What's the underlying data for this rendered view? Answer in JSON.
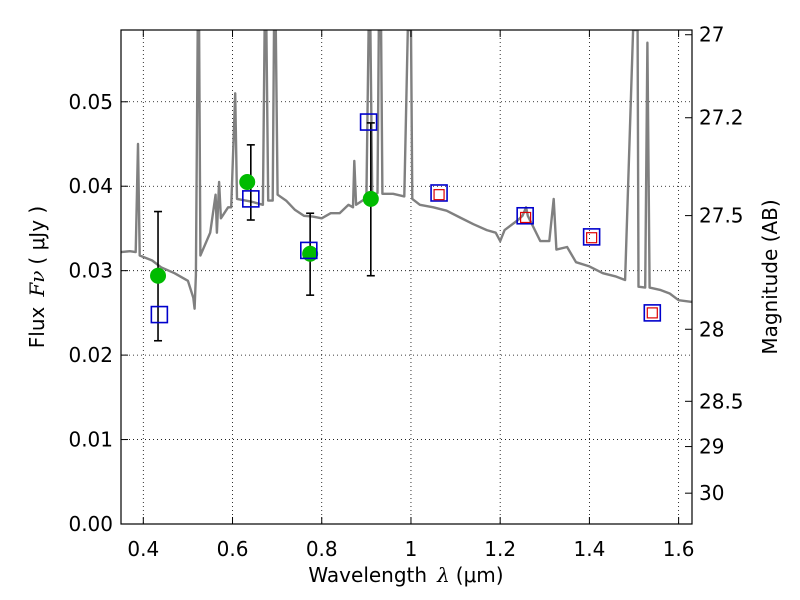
{
  "chart_data": {
    "type": "scatter",
    "xlabel_text": "Wavelength",
    "xlabel_symbol": "λ",
    "xlabel_unit": "(μm)",
    "ylabel_text": "Flux",
    "ylabel_symbol": "Fν",
    "ylabel_unit": "( μJy )",
    "y2label": "Magnitude (AB)",
    "xlim": [
      0.35,
      1.63
    ],
    "ylim": [
      0.0,
      0.0585
    ],
    "grid": true,
    "x_ticks": [
      0.4,
      0.6,
      0.8,
      1.0,
      1.2,
      1.4,
      1.6
    ],
    "x_tick_labels": [
      "0.4",
      "0.6",
      "0.8",
      "1",
      "1.2",
      "1.4",
      "1.6"
    ],
    "y_ticks": [
      0.0,
      0.01,
      0.02,
      0.03,
      0.04,
      0.05
    ],
    "y_tick_labels": [
      "0.00",
      "0.01",
      "0.02",
      "0.03",
      "0.04",
      "0.05"
    ],
    "y2_ticks": [
      {
        "label": "27",
        "flux": 0.05794
      },
      {
        "label": "27.2",
        "flux": 0.04811
      },
      {
        "label": "27.5",
        "flux": 0.03652
      },
      {
        "label": "28",
        "flux": 0.02306
      },
      {
        "label": "28.5",
        "flux": 0.01453
      },
      {
        "label": "29",
        "flux": 0.00917
      },
      {
        "label": "30",
        "flux": 0.00365
      }
    ],
    "colors": {
      "model": "#808080",
      "observed": "#00bb00",
      "model_box": "#0000cc",
      "inner_box": "#dd0000",
      "errorbar": "#000000"
    },
    "series": [
      {
        "type": "line",
        "points": [
          [
            0.35,
            0.0322
          ],
          [
            0.37,
            0.0323
          ],
          [
            0.383,
            0.0322
          ],
          [
            0.388,
            0.045
          ],
          [
            0.392,
            0.0318
          ],
          [
            0.42,
            0.0312
          ],
          [
            0.44,
            0.0304
          ],
          [
            0.47,
            0.0297
          ],
          [
            0.5,
            0.0288
          ],
          [
            0.512,
            0.0268
          ],
          [
            0.515,
            0.0255
          ],
          [
            0.518,
            0.0295
          ],
          [
            0.522,
            0.0585
          ],
          [
            0.525,
            0.0585
          ],
          [
            0.528,
            0.0318
          ],
          [
            0.55,
            0.0345
          ],
          [
            0.562,
            0.039
          ],
          [
            0.565,
            0.0345
          ],
          [
            0.57,
            0.0405
          ],
          [
            0.574,
            0.0362
          ],
          [
            0.59,
            0.0375
          ],
          [
            0.597,
            0.0375
          ],
          [
            0.606,
            0.051
          ],
          [
            0.61,
            0.0385
          ],
          [
            0.64,
            0.0382
          ],
          [
            0.668,
            0.0378
          ],
          [
            0.672,
            0.0585
          ],
          [
            0.676,
            0.0585
          ],
          [
            0.68,
            0.0383
          ],
          [
            0.69,
            0.0383
          ],
          [
            0.693,
            0.0585
          ],
          [
            0.697,
            0.0585
          ],
          [
            0.701,
            0.039
          ],
          [
            0.72,
            0.0383
          ],
          [
            0.74,
            0.0372
          ],
          [
            0.76,
            0.0365
          ],
          [
            0.78,
            0.0364
          ],
          [
            0.8,
            0.0362
          ],
          [
            0.82,
            0.0368
          ],
          [
            0.84,
            0.0368
          ],
          [
            0.86,
            0.0378
          ],
          [
            0.87,
            0.0375
          ],
          [
            0.873,
            0.043
          ],
          [
            0.877,
            0.0378
          ],
          [
            0.9,
            0.0386
          ],
          [
            0.905,
            0.0585
          ],
          [
            0.909,
            0.0585
          ],
          [
            0.913,
            0.039
          ],
          [
            0.925,
            0.0392
          ],
          [
            0.928,
            0.0585
          ],
          [
            0.933,
            0.0585
          ],
          [
            0.936,
            0.0391
          ],
          [
            0.96,
            0.0391
          ],
          [
            0.985,
            0.0388
          ],
          [
            0.993,
            0.0585
          ],
          [
            1.0,
            0.0585
          ],
          [
            1.003,
            0.0385
          ],
          [
            1.02,
            0.0378
          ],
          [
            1.05,
            0.0375
          ],
          [
            1.08,
            0.0371
          ],
          [
            1.11,
            0.0363
          ],
          [
            1.14,
            0.0355
          ],
          [
            1.17,
            0.0348
          ],
          [
            1.19,
            0.0345
          ],
          [
            1.2,
            0.0335
          ],
          [
            1.21,
            0.0348
          ],
          [
            1.24,
            0.036
          ],
          [
            1.25,
            0.0365
          ],
          [
            1.258,
            0.0375
          ],
          [
            1.262,
            0.0365
          ],
          [
            1.29,
            0.0335
          ],
          [
            1.31,
            0.0335
          ],
          [
            1.32,
            0.0385
          ],
          [
            1.326,
            0.0325
          ],
          [
            1.35,
            0.0328
          ],
          [
            1.37,
            0.031
          ],
          [
            1.4,
            0.0305
          ],
          [
            1.43,
            0.0297
          ],
          [
            1.46,
            0.0293
          ],
          [
            1.48,
            0.0289
          ],
          [
            1.498,
            0.0585
          ],
          [
            1.508,
            0.0585
          ],
          [
            1.51,
            0.0281
          ],
          [
            1.525,
            0.028
          ],
          [
            1.53,
            0.057
          ],
          [
            1.535,
            0.028
          ],
          [
            1.56,
            0.0277
          ],
          [
            1.58,
            0.0273
          ],
          [
            1.6,
            0.0265
          ],
          [
            1.63,
            0.0263
          ]
        ]
      },
      {
        "type": "scatter",
        "points": [
          {
            "x": 0.433,
            "y": 0.0294
          },
          {
            "x": 0.633,
            "y": 0.0405
          },
          {
            "x": 0.774,
            "y": 0.032
          },
          {
            "x": 0.91,
            "y": 0.0385
          }
        ]
      },
      {
        "type": "errorbar",
        "bars": [
          {
            "x": 0.433,
            "low": 0.0217,
            "high": 0.037
          },
          {
            "x": 0.641,
            "low": 0.036,
            "high": 0.0449
          },
          {
            "x": 0.774,
            "low": 0.0271,
            "high": 0.0368
          },
          {
            "x": 0.91,
            "low": 0.0294,
            "high": 0.0475
          }
        ]
      },
      {
        "type": "scatter",
        "points": [
          {
            "x": 0.436,
            "y": 0.0248
          },
          {
            "x": 0.641,
            "y": 0.0385
          },
          {
            "x": 0.771,
            "y": 0.0324
          },
          {
            "x": 0.905,
            "y": 0.0476
          },
          {
            "x": 1.063,
            "y": 0.0392
          },
          {
            "x": 1.256,
            "y": 0.0365
          },
          {
            "x": 1.405,
            "y": 0.034
          },
          {
            "x": 1.541,
            "y": 0.025
          }
        ]
      },
      {
        "type": "scatter",
        "points": [
          {
            "x": 1.063,
            "y": 0.039
          },
          {
            "x": 1.257,
            "y": 0.0363
          },
          {
            "x": 1.405,
            "y": 0.0339
          },
          {
            "x": 1.541,
            "y": 0.025
          }
        ]
      }
    ]
  }
}
